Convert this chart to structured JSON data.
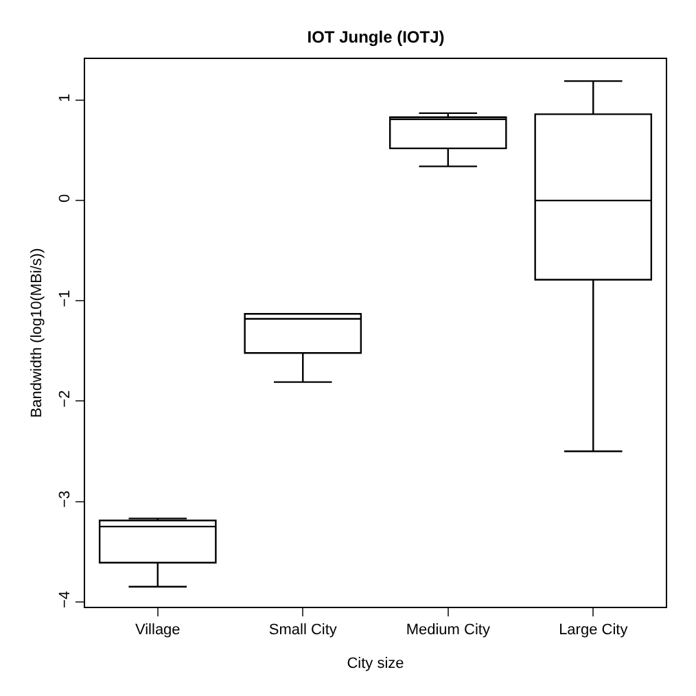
{
  "chart_data": {
    "type": "box",
    "title": "IOT Jungle (IOTJ)",
    "xlabel": "City size",
    "ylabel": "Bandwidth (log10(MBi/s))",
    "categories": [
      "Village",
      "Small City",
      "Medium City",
      "Large City"
    ],
    "boxes": [
      {
        "low": -3.85,
        "q1": -3.61,
        "median": -3.25,
        "q3": -3.19,
        "high": -3.17
      },
      {
        "low": -1.81,
        "q1": -1.52,
        "median": -1.18,
        "q3": -1.13,
        "high": -1.13
      },
      {
        "low": 0.34,
        "q1": 0.52,
        "median": 0.81,
        "q3": 0.83,
        "high": 0.87
      },
      {
        "low": -2.5,
        "q1": -0.79,
        "median": 0.0,
        "q3": 0.86,
        "high": 1.19
      }
    ],
    "color": "#000000",
    "ylim": [
      -4.05,
      1.41
    ],
    "yticks": [
      -4,
      -3,
      -2,
      -1,
      0,
      1
    ]
  }
}
